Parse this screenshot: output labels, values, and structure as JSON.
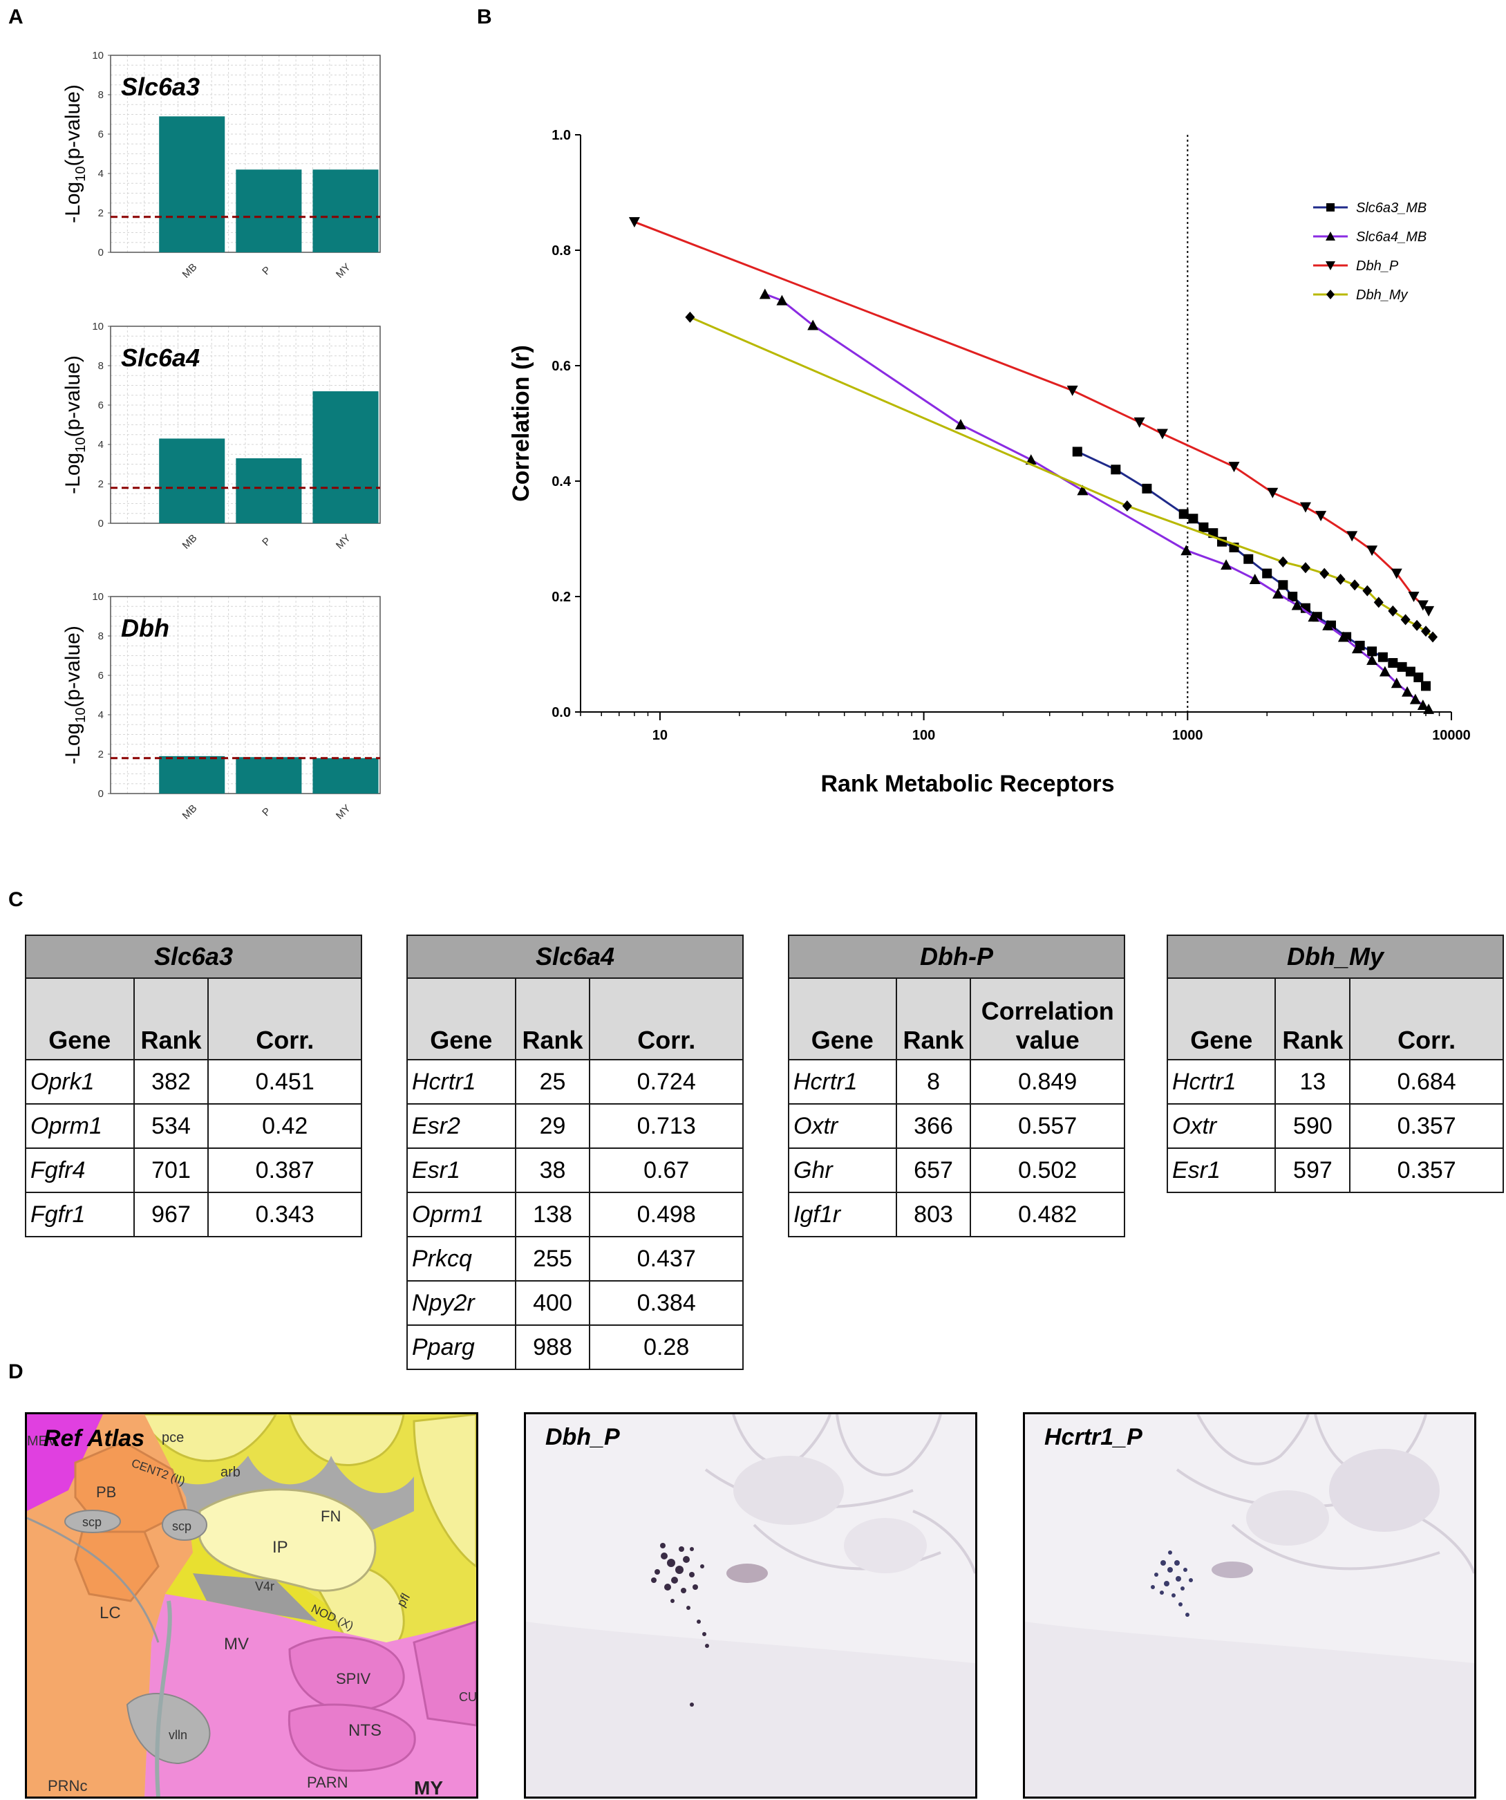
{
  "panels": {
    "A": "A",
    "B": "B",
    "C": "C",
    "D": "D"
  },
  "panel_a": {
    "ylabel_pre": "-Log",
    "ylabel_sub": "10",
    "ylabel_post": "(p-value)",
    "threshold": 1.8,
    "bar_color": "#0b7c7b",
    "threshold_color": "#8b0000"
  },
  "chart_data": [
    {
      "type": "bar",
      "title": "Slc6a3",
      "categories": [
        "MB",
        "P",
        "MY"
      ],
      "values": [
        6.9,
        4.2,
        4.2
      ],
      "ylim": [
        0,
        10
      ],
      "yticks": [
        0,
        2,
        4,
        6,
        8,
        10
      ],
      "ylabel": "-Log10(p-value)"
    },
    {
      "type": "bar",
      "title": "Slc6a4",
      "categories": [
        "MB",
        "P",
        "MY"
      ],
      "values": [
        4.3,
        3.3,
        6.7
      ],
      "ylim": [
        0,
        10
      ],
      "yticks": [
        0,
        2,
        4,
        6,
        8,
        10
      ],
      "ylabel": "-Log10(p-value)"
    },
    {
      "type": "bar",
      "title": "Dbh",
      "categories": [
        "MB",
        "P",
        "MY"
      ],
      "values": [
        1.9,
        1.85,
        1.8
      ],
      "ylim": [
        0,
        10
      ],
      "yticks": [
        0,
        2,
        4,
        6,
        8,
        10
      ],
      "ylabel": "-Log10(p-value)"
    },
    {
      "type": "line",
      "xscale": "log",
      "xlabel": "Rank Metabolic Receptors",
      "ylabel": "Correlation (r)",
      "xlim": [
        5,
        10000
      ],
      "ylim": [
        0,
        1.0
      ],
      "xticks": [
        10,
        100,
        1000,
        10000
      ],
      "xtick_labels": [
        "10",
        "100",
        "1000",
        "10000"
      ],
      "yticks": [
        0,
        0.2,
        0.4,
        0.6,
        0.8,
        1.0
      ],
      "ytick_labels": [
        "0.0",
        "0.2",
        "0.4",
        "0.6",
        "0.8",
        "1.0"
      ],
      "vline": 1000,
      "legend_position": "top-right",
      "series": [
        {
          "name": "Slc6a3_MB",
          "marker": "square",
          "color": "#1f2a8a",
          "x": [
            382,
            534,
            701,
            967,
            1050,
            1150,
            1250,
            1350,
            1500,
            1700,
            2000,
            2300,
            2500,
            2800,
            3100,
            3500,
            4000,
            4500,
            5000,
            5500,
            6000,
            6500,
            7000,
            7500,
            8000
          ],
          "y": [
            0.451,
            0.42,
            0.387,
            0.343,
            0.335,
            0.32,
            0.31,
            0.295,
            0.285,
            0.265,
            0.24,
            0.22,
            0.2,
            0.18,
            0.165,
            0.15,
            0.13,
            0.115,
            0.105,
            0.095,
            0.085,
            0.078,
            0.07,
            0.06,
            0.045
          ]
        },
        {
          "name": "Slc6a4_MB",
          "marker": "triangle-up",
          "color": "#8a2be2",
          "x": [
            25,
            29,
            38,
            138,
            255,
            400,
            988,
            1400,
            1800,
            2200,
            2600,
            3000,
            3400,
            3900,
            4400,
            5000,
            5600,
            6200,
            6800,
            7300,
            7800,
            8200
          ],
          "y": [
            0.724,
            0.713,
            0.67,
            0.498,
            0.437,
            0.384,
            0.28,
            0.255,
            0.23,
            0.205,
            0.185,
            0.165,
            0.15,
            0.13,
            0.11,
            0.09,
            0.07,
            0.05,
            0.035,
            0.022,
            0.012,
            0.005
          ]
        },
        {
          "name": "Dbh_P",
          "marker": "triangle-down",
          "color": "#e02020",
          "x": [
            8,
            366,
            657,
            803,
            1500,
            2100,
            2800,
            3200,
            4200,
            5000,
            6200,
            7200,
            7800,
            8200
          ],
          "y": [
            0.849,
            0.557,
            0.502,
            0.482,
            0.425,
            0.38,
            0.355,
            0.34,
            0.305,
            0.28,
            0.24,
            0.2,
            0.185,
            0.175
          ]
        },
        {
          "name": "Dbh_My",
          "marker": "diamond",
          "color": "#b8b800",
          "x": [
            13,
            590,
            2300,
            2800,
            3300,
            3800,
            4300,
            4800,
            5300,
            6000,
            6700,
            7400,
            8000,
            8500
          ],
          "y": [
            0.684,
            0.357,
            0.26,
            0.25,
            0.24,
            0.23,
            0.22,
            0.21,
            0.19,
            0.175,
            0.16,
            0.15,
            0.14,
            0.13
          ]
        }
      ]
    }
  ],
  "tables": [
    {
      "title": "Slc6a3",
      "headers": [
        "Gene",
        "Rank",
        "Corr."
      ],
      "rows": [
        [
          "Oprk1",
          "382",
          "0.451"
        ],
        [
          "Oprm1",
          "534",
          "0.42"
        ],
        [
          "Fgfr4",
          "701",
          "0.387"
        ],
        [
          "Fgfr1",
          "967",
          "0.343"
        ]
      ]
    },
    {
      "title": "Slc6a4",
      "headers": [
        "Gene",
        "Rank",
        "Corr."
      ],
      "rows": [
        [
          "Hcrtr1",
          "25",
          "0.724"
        ],
        [
          "Esr2",
          "29",
          "0.713"
        ],
        [
          "Esr1",
          "38",
          "0.67"
        ],
        [
          "Oprm1",
          "138",
          "0.498"
        ],
        [
          "Prkcq",
          "255",
          "0.437"
        ],
        [
          "Npy2r",
          "400",
          "0.384"
        ],
        [
          "Pparg",
          "988",
          "0.28"
        ]
      ]
    },
    {
      "title": "Dbh-P",
      "headers": [
        "Gene",
        "Rank",
        "Correlation value"
      ],
      "rows": [
        [
          "Hcrtr1",
          "8",
          "0.849"
        ],
        [
          "Oxtr",
          "366",
          "0.557"
        ],
        [
          "Ghr",
          "657",
          "0.502"
        ],
        [
          "Igf1r",
          "803",
          "0.482"
        ]
      ]
    },
    {
      "title": "Dbh_My",
      "headers": [
        "Gene",
        "Rank",
        "Corr."
      ],
      "rows": [
        [
          "Hcrtr1",
          "13",
          "0.684"
        ],
        [
          "Oxtr",
          "590",
          "0.357"
        ],
        [
          "Esr1",
          "597",
          "0.357"
        ]
      ]
    }
  ],
  "panel_d": {
    "atlas": {
      "title": "Ref Atlas",
      "regions": [
        "MEV",
        "pce",
        "CENT2 (II)",
        "arb",
        "FN",
        "PB",
        "scp",
        "scp",
        "IP",
        "LC",
        "V4r",
        "pfl",
        "NOD (X)",
        "MV",
        "SPIV",
        "CU",
        "NTS",
        "vlln",
        "PARN",
        "PRNc",
        "MY"
      ]
    },
    "ish_1": {
      "title": "Dbh_P"
    },
    "ish_2": {
      "title": "Hcrtr1_P"
    }
  }
}
